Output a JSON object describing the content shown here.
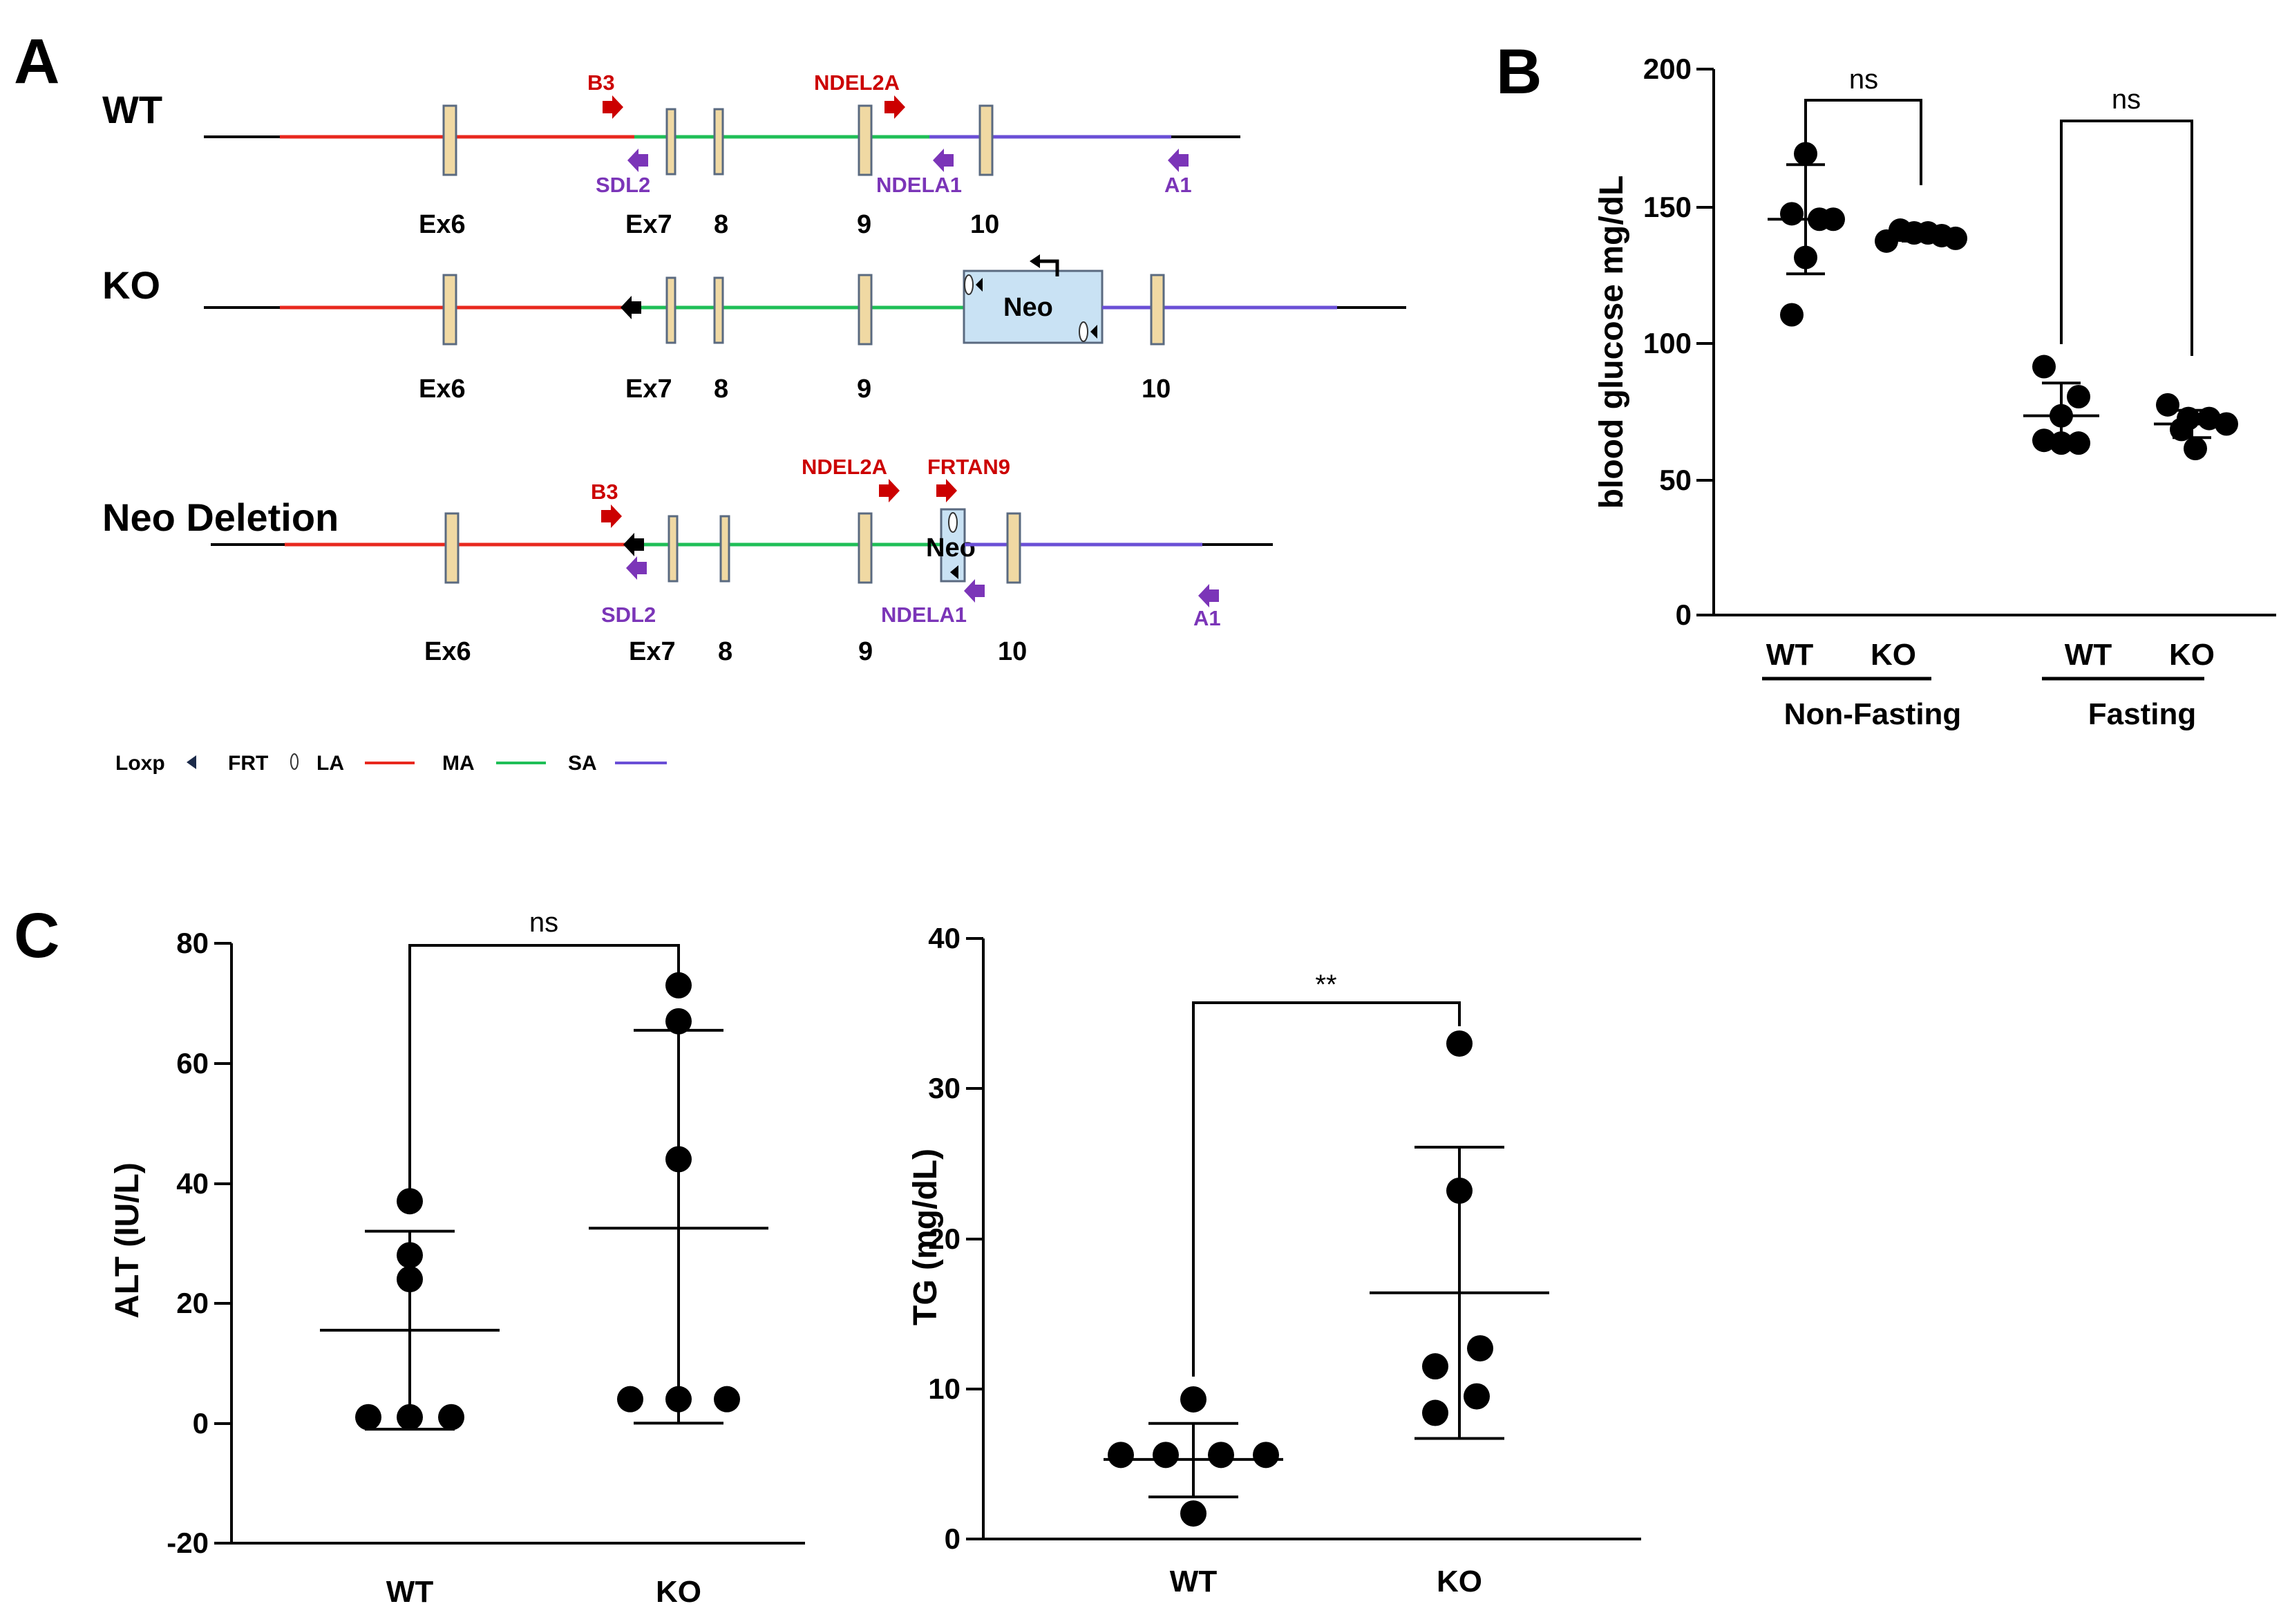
{
  "panels": {
    "a": "A",
    "b": "B",
    "c": "C"
  },
  "diagram": {
    "rows": {
      "wt": "WT",
      "ko": "KO",
      "neo_deletion": "Neo Deletion"
    },
    "neo_label": "Neo",
    "exons": {
      "ex6": "Ex6",
      "ex7": "Ex7",
      "e8": "8",
      "e9": "9",
      "e10": "10"
    },
    "primers": {
      "b3": "B3",
      "ndel2a": "NDEL2A",
      "sdl2": "SDL2",
      "ndela1": "NDELA1",
      "a1": "A1",
      "frtan9": "FRTAN9"
    },
    "legend": {
      "loxp": "Loxp",
      "frt": "FRT",
      "la": "LA",
      "ma": "MA",
      "sa": "SA"
    },
    "colors": {
      "la": "#e8281e",
      "ma": "#1fbf57",
      "sa": "#6a4fd6",
      "primer_red": "#cc0000",
      "primer_purple": "#7b35b8",
      "exon": "#f0d9a3",
      "neo_box": "#c9e2f4"
    }
  },
  "chart_data": [
    {
      "id": "blood-glucose",
      "type": "scatter",
      "ylabel": "blood glucose mg/dL",
      "ylim": [
        0,
        200
      ],
      "yticks": [
        0,
        50,
        100,
        150,
        200
      ],
      "yticklabels": [
        "0",
        "50",
        "100",
        "150",
        "200"
      ],
      "groups": [
        {
          "name": "Non-Fasting",
          "categories": [
            "WT",
            "KO"
          ]
        },
        {
          "name": "Fasting",
          "categories": [
            "WT",
            "KO"
          ]
        }
      ],
      "series": [
        {
          "group": "Non-Fasting",
          "name": "WT",
          "values": [
            169,
            147,
            145,
            145,
            131,
            110
          ],
          "mean": 145,
          "sd_low": 125,
          "sd_high": 165
        },
        {
          "group": "Non-Fasting",
          "name": "KO",
          "values": [
            141,
            140,
            140,
            139,
            138,
            137
          ],
          "mean": 139,
          "sd_low": 137,
          "sd_high": 141
        },
        {
          "group": "Fasting",
          "name": "WT",
          "values": [
            91,
            80,
            73,
            64,
            63,
            63
          ],
          "mean": 73,
          "sd_low": 62,
          "sd_high": 85
        },
        {
          "group": "Fasting",
          "name": "KO",
          "values": [
            77,
            72,
            72,
            70,
            68,
            61
          ],
          "mean": 70,
          "sd_low": 65,
          "sd_high": 75
        }
      ],
      "annotations": [
        {
          "between": [
            "Non-Fasting WT",
            "Non-Fasting KO"
          ],
          "text": "ns"
        },
        {
          "between": [
            "Fasting WT",
            "Fasting KO"
          ],
          "text": "ns"
        }
      ]
    },
    {
      "id": "alt",
      "type": "scatter",
      "ylabel": "ALT (IU/L)",
      "ylim": [
        -20,
        80
      ],
      "yticks": [
        -20,
        0,
        20,
        40,
        60,
        80
      ],
      "yticklabels": [
        "-20",
        "0",
        "20",
        "40",
        "60",
        "80"
      ],
      "categories": [
        "WT",
        "KO"
      ],
      "series": [
        {
          "name": "WT",
          "values": [
            37,
            28,
            24,
            1,
            1,
            1
          ],
          "mean": 15.5,
          "sd_low": -1,
          "sd_high": 32
        },
        {
          "name": "KO",
          "values": [
            73,
            67,
            44,
            4,
            4,
            4
          ],
          "mean": 32.5,
          "sd_low": 0,
          "sd_high": 65.5
        }
      ],
      "annotations": [
        {
          "between": [
            "WT",
            "KO"
          ],
          "text": "ns"
        }
      ]
    },
    {
      "id": "tg",
      "type": "scatter",
      "ylabel": "TG (mg/dL)",
      "ylim": [
        0,
        40
      ],
      "yticks": [
        0,
        10,
        20,
        30,
        40
      ],
      "yticklabels": [
        "0",
        "10",
        "20",
        "30",
        "40"
      ],
      "categories": [
        "WT",
        "KO"
      ],
      "series": [
        {
          "name": "WT",
          "values": [
            9.3,
            5.6,
            5.6,
            5.6,
            5.6,
            1.7
          ],
          "mean": 5.3,
          "sd_low": 2.8,
          "sd_high": 7.7
        },
        {
          "name": "KO",
          "values": [
            33,
            23.2,
            12.7,
            11.5,
            9.5,
            8.4
          ],
          "mean": 16.4,
          "sd_low": 6.7,
          "sd_high": 26.1
        }
      ],
      "annotations": [
        {
          "between": [
            "WT",
            "KO"
          ],
          "text": "**"
        }
      ]
    }
  ]
}
